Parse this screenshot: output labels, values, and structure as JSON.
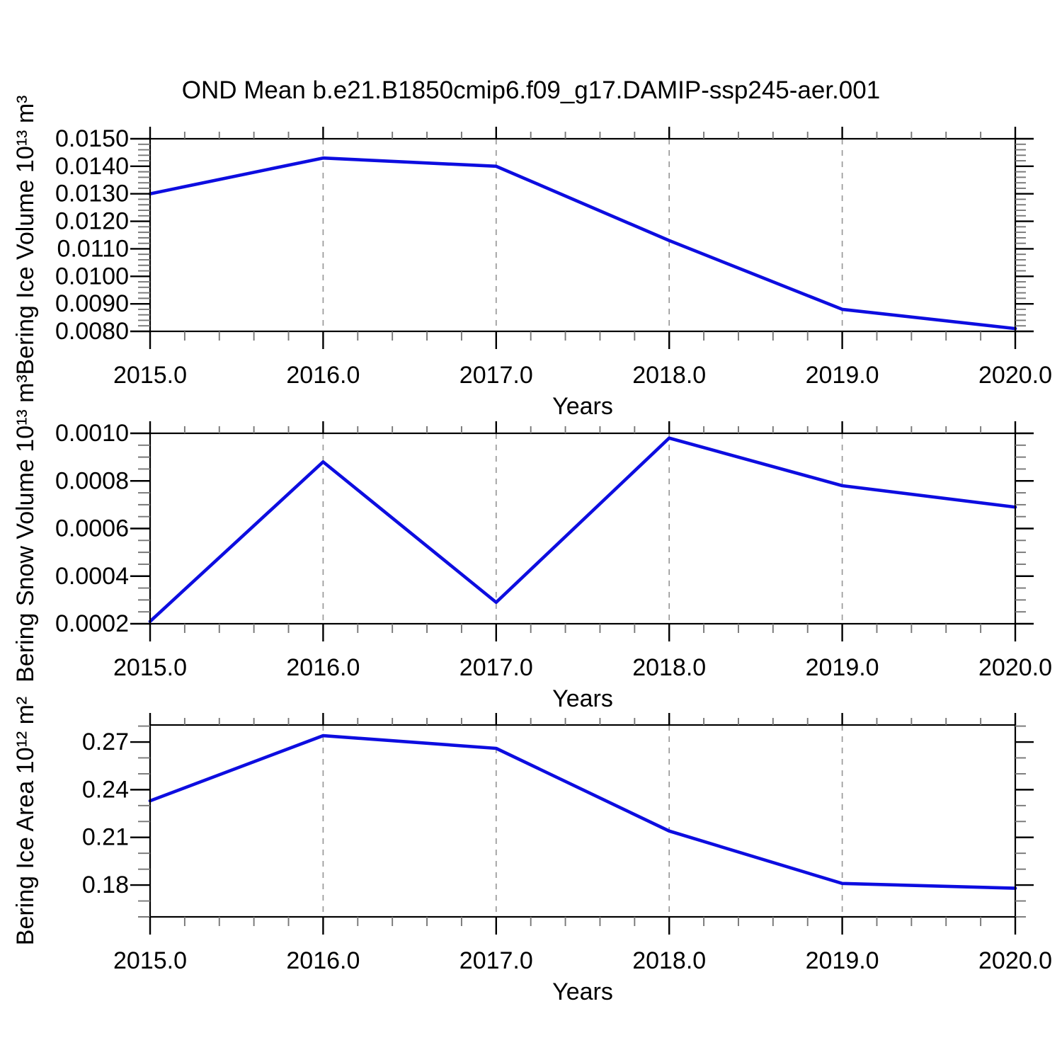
{
  "title": "OND Mean b.e21.B1850cmip6.f09_g17.DAMIP-ssp245-aer.001",
  "colors": {
    "line": "#0d0de0",
    "grid": "#999999",
    "frame": "#000000",
    "major_tick": "#000000",
    "minor_tick": "#777777",
    "text": "#000000"
  },
  "chart_data": [
    {
      "type": "line",
      "title": "",
      "x": [
        2015,
        2016,
        2017,
        2018,
        2019,
        2020
      ],
      "values": [
        0.013,
        0.0143,
        0.014,
        0.0113,
        0.0088,
        0.0081
      ],
      "xlabel": "Years",
      "ylabel": "Bering Ice Volume 10¹³ m³",
      "xlim": [
        2015,
        2020
      ],
      "ylim": [
        0.008,
        0.015
      ],
      "xticks": [
        2015,
        2016,
        2017,
        2018,
        2019,
        2020
      ],
      "xtick_labels": [
        "2015.0",
        "2016.0",
        "2017.0",
        "2018.0",
        "2019.0",
        "2020.0"
      ],
      "x_minor_step": 0.2,
      "yticks": [
        0.008,
        0.009,
        0.01,
        0.011,
        0.012,
        0.013,
        0.014,
        0.015
      ],
      "ytick_labels": [
        "0.0080",
        "0.0090",
        "0.0100",
        "0.0110",
        "0.0120",
        "0.0130",
        "0.0140",
        "0.0150"
      ],
      "y_minor_step": 0.0002,
      "grid_x": [
        2016,
        2017,
        2018,
        2019
      ],
      "legend": "none"
    },
    {
      "type": "line",
      "title": "",
      "x": [
        2015,
        2016,
        2017,
        2018,
        2019,
        2020
      ],
      "values": [
        0.00021,
        0.00088,
        0.00029,
        0.00098,
        0.00078,
        0.00069
      ],
      "xlabel": "Years",
      "ylabel": "Bering Snow Volume 10¹³ m³",
      "xlim": [
        2015,
        2020
      ],
      "ylim": [
        0.0002,
        0.001
      ],
      "xticks": [
        2015,
        2016,
        2017,
        2018,
        2019,
        2020
      ],
      "xtick_labels": [
        "2015.0",
        "2016.0",
        "2017.0",
        "2018.0",
        "2019.0",
        "2020.0"
      ],
      "x_minor_step": 0.2,
      "yticks": [
        0.0002,
        0.0004,
        0.0006,
        0.0008,
        0.001
      ],
      "ytick_labels": [
        "0.0002",
        "0.0004",
        "0.0006",
        "0.0008",
        "0.0010"
      ],
      "y_minor_step": 5e-05,
      "grid_x": [
        2016,
        2017,
        2018,
        2019
      ],
      "legend": "none"
    },
    {
      "type": "line",
      "title": "",
      "x": [
        2015,
        2016,
        2017,
        2018,
        2019,
        2020
      ],
      "values": [
        0.233,
        0.274,
        0.266,
        0.214,
        0.181,
        0.178
      ],
      "xlabel": "Years",
      "ylabel": "Bering Ice Area 10¹² m²",
      "xlim": [
        2015,
        2020
      ],
      "ylim": [
        0.16,
        0.2807
      ],
      "xticks": [
        2015,
        2016,
        2017,
        2018,
        2019,
        2020
      ],
      "xtick_labels": [
        "2015.0",
        "2016.0",
        "2017.0",
        "2018.0",
        "2019.0",
        "2020.0"
      ],
      "x_minor_step": 0.2,
      "yticks": [
        0.18,
        0.21,
        0.24,
        0.27
      ],
      "ytick_labels": [
        "0.18",
        "0.21",
        "0.24",
        "0.27"
      ],
      "y_minor_step": 0.01,
      "grid_x": [
        2016,
        2017,
        2018,
        2019
      ],
      "legend": "none"
    }
  ]
}
